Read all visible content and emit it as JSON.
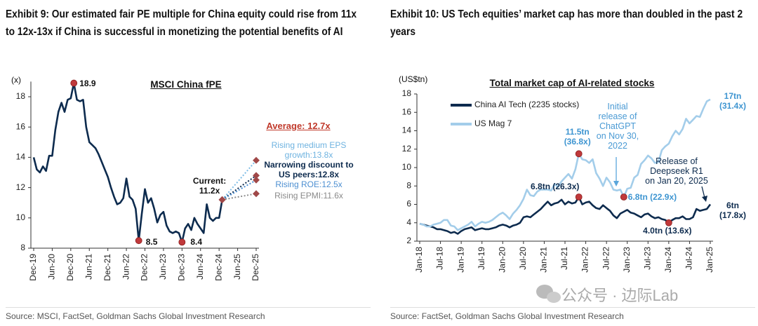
{
  "chart_data": [
    {
      "type": "line",
      "title": "Exhibit 9: Our estimated fair PE multiple for China equity could rise from 11x to 12x-13x if China is successful in monetizing the potential benefits of AI",
      "subtitle": "MSCI China fPE",
      "y_label": "(x)",
      "source": "Source: MSCI, FactSet, Goldman Sachs Global Investment Research",
      "annotations": [
        "Average: 12.7x"
      ],
      "categories": [
        "Dec-19",
        null,
        null,
        null,
        null,
        null,
        "Jun-20",
        null,
        null,
        null,
        null,
        null,
        "Dec-20",
        null,
        null,
        null,
        null,
        null,
        "Jun-21",
        null,
        null,
        null,
        null,
        null,
        "Dec-21",
        null,
        null,
        null,
        null,
        null,
        "Jun-22",
        null,
        null,
        null,
        null,
        null,
        "Dec-22",
        null,
        null,
        null,
        null,
        null,
        "Jun-23",
        null,
        null,
        null,
        null,
        null,
        "Dec-23",
        null,
        null,
        null,
        null,
        null,
        "Jun-24",
        null,
        null,
        null,
        null,
        null,
        "Dec-24",
        null,
        null,
        null,
        null,
        null,
        "Jun-25",
        null,
        null,
        null,
        null,
        null,
        "Dec-25"
      ],
      "ylim": [
        8,
        19
      ],
      "yticks": [
        8,
        10,
        12,
        14,
        16,
        18
      ],
      "series": [
        {
          "color": "#0d2b4e",
          "line_style": "solid",
          "values": [
            14.0,
            13.2,
            13.0,
            13.4,
            13.1,
            14.1,
            14.1,
            15.8,
            17.0,
            17.6,
            17.0,
            17.8,
            17.9,
            18.9,
            17.8,
            17.7,
            17.8,
            16.0,
            15.0,
            14.8,
            14.6,
            14.2,
            13.7,
            13.2,
            12.7,
            12.0,
            11.4,
            10.9,
            11.0,
            11.3,
            12.6,
            11.4,
            11.2,
            10.6,
            8.5,
            10.3,
            11.9,
            11.0,
            11.3,
            10.6,
            9.7,
            10.2,
            10.4,
            9.5,
            9.1,
            9.0,
            9.1,
            9.0,
            8.4,
            9.3,
            9.6,
            9.2,
            10.0,
            9.6,
            9.3,
            9.0,
            10.9,
            10.0,
            9.8,
            10.0,
            10.0,
            11.2,
            null,
            null,
            null,
            null,
            null,
            null,
            null,
            null,
            null,
            null,
            null
          ],
          "value_labels": [
            null,
            null,
            null,
            null,
            null,
            null,
            null,
            null,
            null,
            null,
            null,
            null,
            null,
            "18.9",
            null,
            null,
            null,
            null,
            null,
            null,
            null,
            null,
            null,
            null,
            null,
            null,
            null,
            null,
            null,
            null,
            null,
            null,
            null,
            null,
            "8.5",
            null,
            null,
            null,
            null,
            null,
            null,
            null,
            null,
            null,
            null,
            null,
            null,
            null,
            "8.4",
            null,
            null,
            null,
            null,
            null,
            null,
            null,
            null,
            null,
            null,
            null,
            null,
            "Current:\n11.2x",
            null,
            null,
            null,
            null,
            null,
            null,
            null,
            null,
            null,
            null,
            null
          ]
        },
        {
          "name": "Rising medium EPS\ngrowth:13.8x",
          "color": "#7fbde6",
          "line_style": "dotted",
          "values": [
            null,
            null,
            null,
            null,
            null,
            null,
            null,
            null,
            null,
            null,
            null,
            null,
            null,
            null,
            null,
            null,
            null,
            null,
            null,
            null,
            null,
            null,
            null,
            null,
            null,
            null,
            null,
            null,
            null,
            null,
            null,
            null,
            null,
            null,
            null,
            null,
            null,
            null,
            null,
            null,
            null,
            null,
            null,
            null,
            null,
            null,
            null,
            null,
            null,
            null,
            null,
            null,
            null,
            null,
            null,
            null,
            null,
            null,
            null,
            null,
            null,
            11.2,
            11.44,
            11.67,
            11.91,
            12.15,
            12.38,
            12.62,
            12.85,
            13.09,
            13.33,
            13.56,
            13.8
          ]
        },
        {
          "name": "Narrowing discount to\nUS peers:12.8x",
          "color": "#0d2b4e",
          "line_style": "dotted",
          "values": [
            null,
            null,
            null,
            null,
            null,
            null,
            null,
            null,
            null,
            null,
            null,
            null,
            null,
            null,
            null,
            null,
            null,
            null,
            null,
            null,
            null,
            null,
            null,
            null,
            null,
            null,
            null,
            null,
            null,
            null,
            null,
            null,
            null,
            null,
            null,
            null,
            null,
            null,
            null,
            null,
            null,
            null,
            null,
            null,
            null,
            null,
            null,
            null,
            null,
            null,
            null,
            null,
            null,
            null,
            null,
            null,
            null,
            null,
            null,
            null,
            null,
            11.2,
            11.35,
            11.49,
            11.64,
            11.78,
            11.93,
            12.07,
            12.22,
            12.36,
            12.51,
            12.65,
            12.8
          ]
        },
        {
          "name": "Rising ROE:12.5x",
          "color": "#4d8fd1",
          "line_style": "dotted",
          "values": [
            null,
            null,
            null,
            null,
            null,
            null,
            null,
            null,
            null,
            null,
            null,
            null,
            null,
            null,
            null,
            null,
            null,
            null,
            null,
            null,
            null,
            null,
            null,
            null,
            null,
            null,
            null,
            null,
            null,
            null,
            null,
            null,
            null,
            null,
            null,
            null,
            null,
            null,
            null,
            null,
            null,
            null,
            null,
            null,
            null,
            null,
            null,
            null,
            null,
            null,
            null,
            null,
            null,
            null,
            null,
            null,
            null,
            null,
            null,
            null,
            null,
            11.2,
            11.32,
            11.44,
            11.55,
            11.67,
            11.79,
            11.91,
            12.03,
            12.15,
            12.26,
            12.38,
            12.5
          ]
        },
        {
          "name": "Rising EPMI:11.6x",
          "color": "#8a8a8a",
          "line_style": "dotted",
          "values": [
            null,
            null,
            null,
            null,
            null,
            null,
            null,
            null,
            null,
            null,
            null,
            null,
            null,
            null,
            null,
            null,
            null,
            null,
            null,
            null,
            null,
            null,
            null,
            null,
            null,
            null,
            null,
            null,
            null,
            null,
            null,
            null,
            null,
            null,
            null,
            null,
            null,
            null,
            null,
            null,
            null,
            null,
            null,
            null,
            null,
            null,
            null,
            null,
            null,
            null,
            null,
            null,
            null,
            null,
            null,
            null,
            null,
            null,
            null,
            null,
            null,
            11.2,
            11.24,
            11.27,
            11.31,
            11.35,
            11.38,
            11.42,
            11.45,
            11.49,
            11.53,
            11.56,
            11.6
          ]
        }
      ]
    },
    {
      "type": "line",
      "title": "Exhibit 10: US Tech equities’ market cap has more than doubled in the past 2 years",
      "subtitle": "Total market cap of AI-related stocks",
      "y_label": "(US$tn)",
      "source": "Source: FactSet, Goldman Sachs Global Investment Research",
      "annotations": [
        "Initial\nrelease of\nChatGPT\non Nov 30,\n2022",
        "Release of\nDeepseek R1\non Jan 20, 2025"
      ],
      "legend": "upper left",
      "categories": [
        "Jan-18",
        null,
        null,
        null,
        null,
        null,
        "Jul-18",
        null,
        null,
        null,
        null,
        null,
        "Jan-19",
        null,
        null,
        null,
        null,
        null,
        "Jul-19",
        null,
        null,
        null,
        null,
        null,
        "Jan-20",
        null,
        null,
        null,
        null,
        null,
        "Jul-20",
        null,
        null,
        null,
        null,
        null,
        "Jan-21",
        null,
        null,
        null,
        null,
        null,
        "Jul-21",
        null,
        null,
        null,
        null,
        null,
        "Jan-22",
        null,
        null,
        null,
        null,
        null,
        "Jul-22",
        null,
        null,
        null,
        null,
        null,
        "Jan-23",
        null,
        null,
        null,
        null,
        null,
        "Jul-23",
        null,
        null,
        null,
        null,
        null,
        "Jan-24",
        null,
        null,
        null,
        null,
        null,
        "Jul-24",
        null,
        null,
        null,
        null,
        null,
        "Jan-25"
      ],
      "ylim": [
        2,
        18
      ],
      "yticks": [
        2,
        4,
        6,
        8,
        10,
        12,
        14,
        16,
        18
      ],
      "series": [
        {
          "name": "China AI Tech (2235 stocks)",
          "color": "#0d2b4e",
          "line_style": "solid",
          "values": [
            3.9,
            3.8,
            3.7,
            3.6,
            3.5,
            3.3,
            3.3,
            3.2,
            3.1,
            2.9,
            3.0,
            2.8,
            3.1,
            3.3,
            3.4,
            3.5,
            3.2,
            3.3,
            3.4,
            3.3,
            3.3,
            3.4,
            3.5,
            3.7,
            3.8,
            3.7,
            3.5,
            3.7,
            3.8,
            4.0,
            4.6,
            4.7,
            4.6,
            4.9,
            5.2,
            5.5,
            5.9,
            6.3,
            5.9,
            6.1,
            6.2,
            6.5,
            6.0,
            6.3,
            6.1,
            6.2,
            6.8,
            6.0,
            6.2,
            6.3,
            5.9,
            5.6,
            5.5,
            5.9,
            5.6,
            5.3,
            4.8,
            4.5,
            5.0,
            5.2,
            5.4,
            5.1,
            5.0,
            4.8,
            4.6,
            4.9,
            5.0,
            4.7,
            4.5,
            4.6,
            4.4,
            4.3,
            4.0,
            4.3,
            4.5,
            4.5,
            4.7,
            4.4,
            4.4,
            4.6,
            5.5,
            5.3,
            5.4,
            5.5,
            6.0
          ],
          "value_labels": [
            null,
            null,
            null,
            null,
            null,
            null,
            null,
            null,
            null,
            null,
            null,
            null,
            null,
            null,
            null,
            null,
            null,
            null,
            null,
            null,
            null,
            null,
            null,
            null,
            null,
            null,
            null,
            null,
            null,
            null,
            null,
            null,
            null,
            null,
            null,
            null,
            null,
            null,
            null,
            null,
            null,
            null,
            null,
            null,
            null,
            null,
            "6.8tn (26.3x)",
            null,
            null,
            null,
            null,
            null,
            null,
            null,
            null,
            null,
            null,
            null,
            null,
            null,
            null,
            null,
            null,
            null,
            null,
            null,
            null,
            null,
            null,
            null,
            null,
            null,
            "4.0tn (13.6x)",
            null,
            null,
            null,
            null,
            null,
            null,
            null,
            null,
            null,
            null,
            null,
            "6tn\n(17.8x)"
          ]
        },
        {
          "name": "US Mag 7",
          "color": "#a3cdea",
          "line_style": "solid",
          "values": [
            3.9,
            3.8,
            3.6,
            3.6,
            3.8,
            3.9,
            4.0,
            4.3,
            4.3,
            3.7,
            3.6,
            3.2,
            3.4,
            3.6,
            3.8,
            4.1,
            3.6,
            3.9,
            4.1,
            4.0,
            4.1,
            4.3,
            4.6,
            4.9,
            5.1,
            4.8,
            4.4,
            5.0,
            5.4,
            5.9,
            6.6,
            7.6,
            7.0,
            6.9,
            7.4,
            7.6,
            7.6,
            7.6,
            7.5,
            8.2,
            7.9,
            8.5,
            8.9,
            9.3,
            8.8,
            9.8,
            11.5,
            10.9,
            10.8,
            10.5,
            10.9,
            9.4,
            8.8,
            8.0,
            8.9,
            8.4,
            7.6,
            7.5,
            7.6,
            6.8,
            7.7,
            7.8,
            8.9,
            9.2,
            10.4,
            10.8,
            11.3,
            11.0,
            10.5,
            10.6,
            11.9,
            12.3,
            12.6,
            13.4,
            14.0,
            13.6,
            14.2,
            15.3,
            14.8,
            15.2,
            15.6,
            15.5,
            16.4,
            17.2,
            17.4
          ],
          "value_labels": [
            null,
            null,
            null,
            null,
            null,
            null,
            null,
            null,
            null,
            null,
            null,
            null,
            null,
            null,
            null,
            null,
            null,
            null,
            null,
            null,
            null,
            null,
            null,
            null,
            null,
            null,
            null,
            null,
            null,
            null,
            null,
            null,
            null,
            null,
            null,
            null,
            null,
            null,
            null,
            null,
            null,
            null,
            null,
            null,
            null,
            null,
            "11.5tn\n(36.8x)",
            null,
            null,
            null,
            null,
            null,
            null,
            null,
            null,
            null,
            null,
            null,
            null,
            "6.8tn (22.9x)",
            null,
            null,
            null,
            null,
            null,
            null,
            null,
            null,
            null,
            null,
            null,
            null,
            null,
            null,
            null,
            null,
            null,
            null,
            null,
            null,
            null,
            null,
            null,
            null,
            "17tn\n(31.4x)"
          ]
        }
      ]
    }
  ],
  "watermark": "公众号 · 边际Lab"
}
